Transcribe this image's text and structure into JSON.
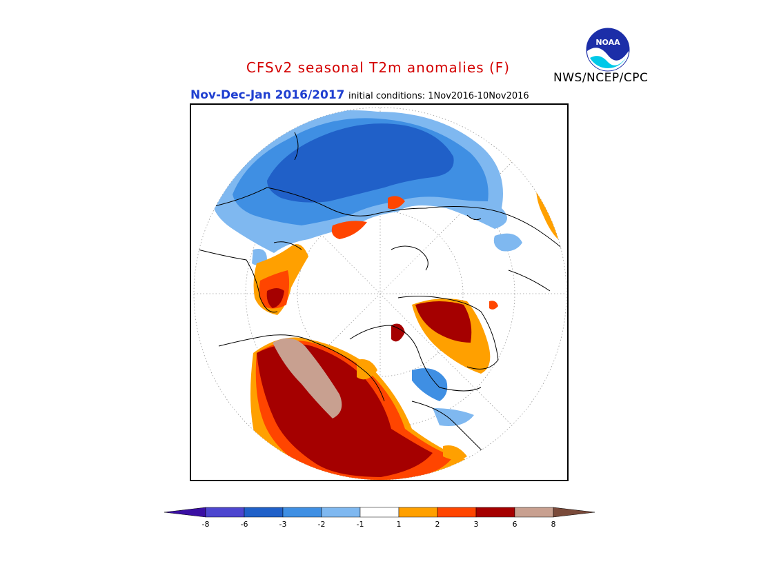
{
  "header": {
    "title": "CFSv2 seasonal T2m anomalies (F)",
    "period": "Nov-Dec-Jan 2016/2017",
    "initial_conditions": "initial conditions: 1Nov2016-10Nov2016",
    "agency": "NWS/NCEP/CPC",
    "logo_text": "NOAA"
  },
  "legend": {
    "ticks": [
      "-8",
      "-6",
      "-3",
      "-2",
      "-1",
      "1",
      "2",
      "3",
      "6",
      "8"
    ],
    "colors": [
      "#3a0fa3",
      "#4d46cf",
      "#2060c8",
      "#3f8fe3",
      "#7fb8f0",
      "#ffffff",
      "#ffa000",
      "#ff4500",
      "#a50000",
      "#c8a090",
      "#7a4a3a"
    ]
  },
  "map": {
    "projection": "polar-stereographic-north",
    "colors": {
      "cold_strong": "#2060c8",
      "cold_moderate": "#3f8fe3",
      "cold_weak": "#7fb8f0",
      "warm_weak": "#ffa000",
      "warm_moderate": "#ff4500",
      "warm_strong": "#a50000",
      "warm_extreme": "#c8a090",
      "coast": "#000000",
      "grid": "#888888"
    }
  }
}
